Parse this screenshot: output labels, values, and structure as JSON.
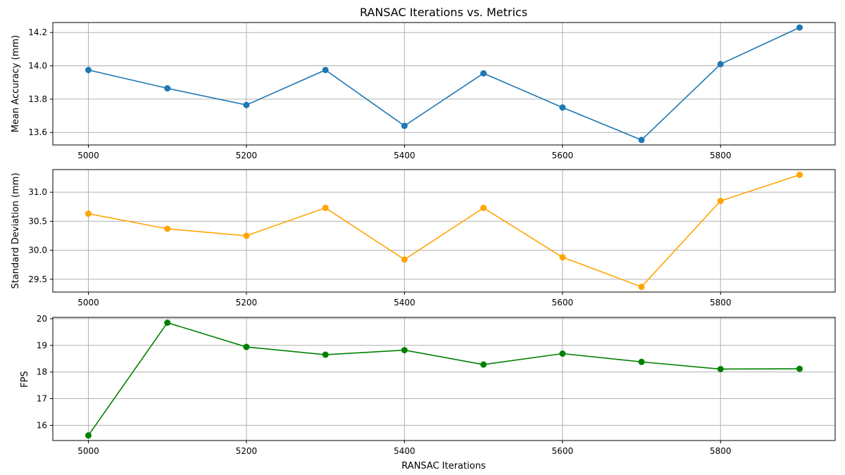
{
  "chart_data": {
    "type": "line",
    "title": "RANSAC Iterations vs. Metrics",
    "xlabel": "RANSAC Iterations",
    "x": [
      5000,
      5100,
      5200,
      5300,
      5400,
      5500,
      5600,
      5700,
      5800,
      5900
    ],
    "xticks": [
      5000,
      5200,
      5400,
      5600,
      5800
    ],
    "xlim": [
      4955,
      5945
    ],
    "grid": true,
    "subplots": [
      {
        "ylabel": "Mean Accuracy (mm)",
        "color": "#1f77b4",
        "values": [
          13.975,
          13.865,
          13.765,
          13.975,
          13.64,
          13.955,
          13.75,
          13.555,
          14.01,
          14.23
        ],
        "ylim": [
          13.525,
          14.26
        ],
        "yticks": [
          13.6,
          13.8,
          14.0,
          14.2
        ],
        "tick_labels": [
          "13.6",
          "13.8",
          "14.0",
          "14.2"
        ]
      },
      {
        "ylabel": "Standard Deviation (mm)",
        "color": "#ffa500",
        "values": [
          30.63,
          30.37,
          30.25,
          30.73,
          29.84,
          30.73,
          29.88,
          29.37,
          30.85,
          31.3
        ],
        "ylim": [
          29.28,
          31.39
        ],
        "yticks": [
          29.5,
          30.0,
          30.5,
          31.0
        ],
        "tick_labels": [
          "29.5",
          "30.0",
          "30.5",
          "31.0"
        ]
      },
      {
        "ylabel": "FPS",
        "color": "#008000",
        "values": [
          15.62,
          19.85,
          18.94,
          18.65,
          18.82,
          18.28,
          18.69,
          18.38,
          18.11,
          18.12
        ],
        "ylim": [
          15.43,
          20.05
        ],
        "yticks": [
          16,
          17,
          18,
          19,
          20
        ],
        "tick_labels": [
          "16",
          "17",
          "18",
          "19",
          "20"
        ]
      }
    ]
  }
}
